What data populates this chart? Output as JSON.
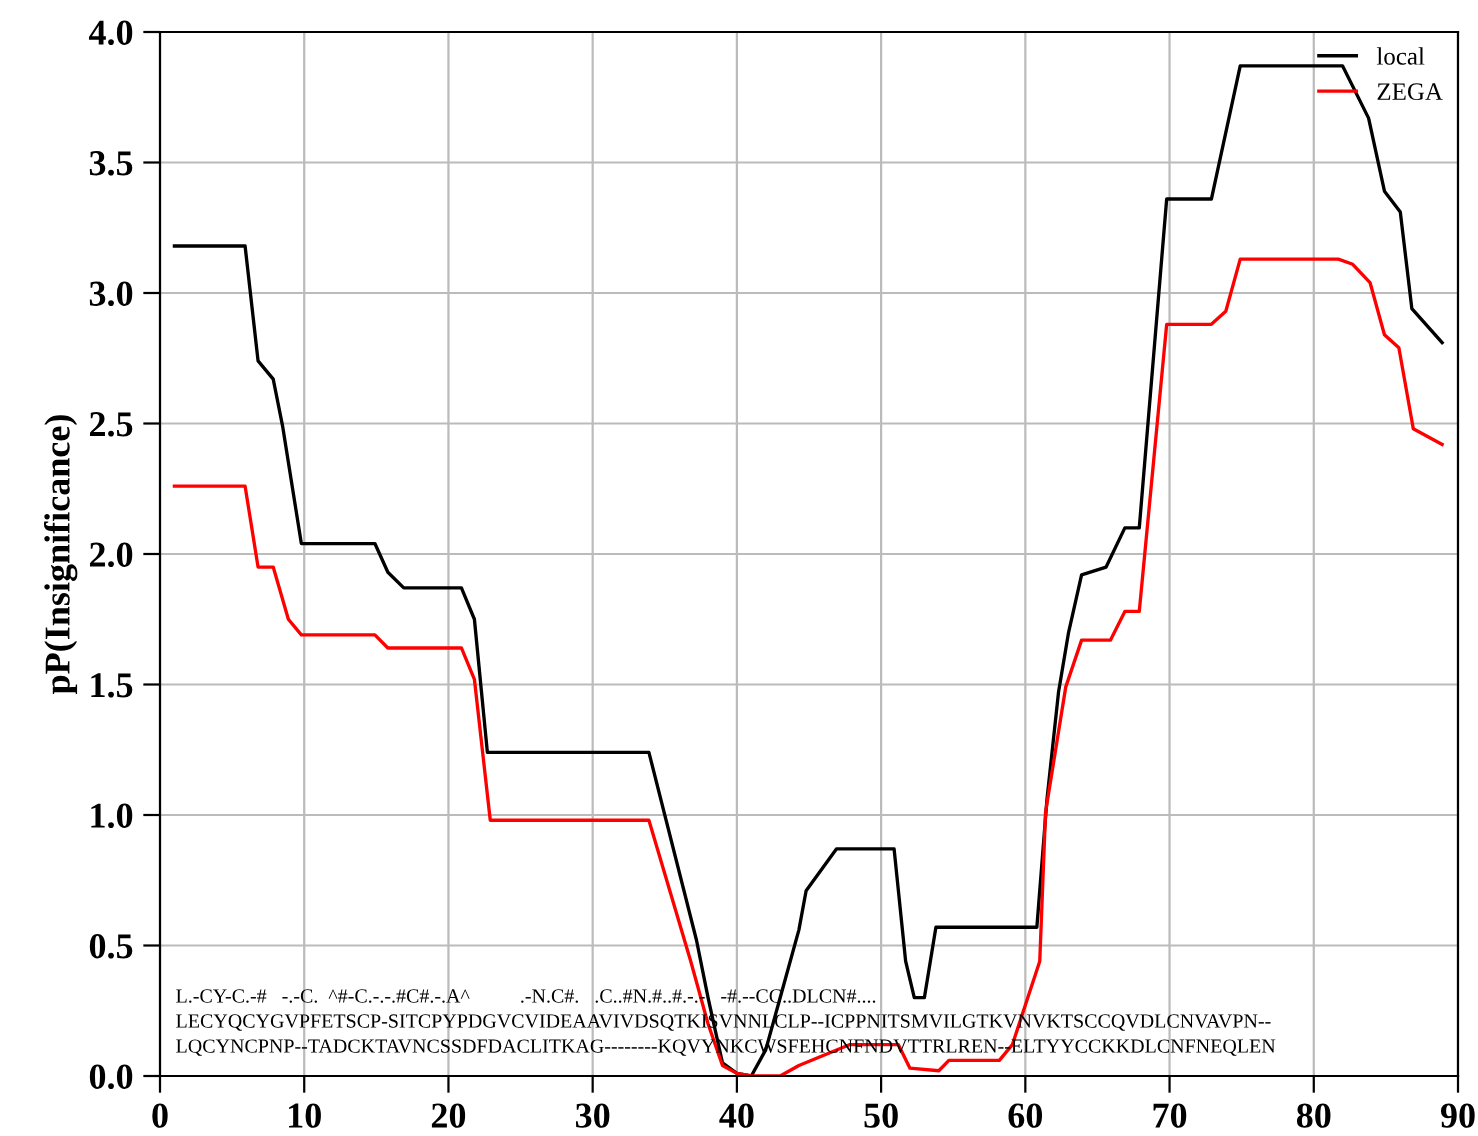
{
  "chart_data": {
    "type": "line",
    "ylabel": "pP(Insignificance)",
    "xlim": [
      0,
      90
    ],
    "xticks": [
      0,
      10,
      20,
      30,
      40,
      50,
      60,
      70,
      80,
      90
    ],
    "ylim": [
      0,
      4
    ],
    "yticks": [
      {
        "value": 0,
        "label": "0.0"
      },
      0.5,
      {
        "value": 1,
        "label": "1.0"
      },
      1.5,
      {
        "value": 2,
        "label": "2.0"
      },
      2.5,
      {
        "value": 3,
        "label": "3.0"
      },
      3.5,
      {
        "value": 4,
        "label": "4.0"
      }
    ],
    "grid": true,
    "legend": "top right",
    "marker": "none",
    "line_style": "solid",
    "series": [
      {
        "name": "local",
        "color": "#000000",
        "x": [
          1,
          5.9,
          6.8,
          7.85,
          8.5,
          9.8,
          14.9,
          15.8,
          16.9,
          20.9,
          21.8,
          22.7,
          33.9,
          37.2,
          38,
          39,
          40,
          41,
          42,
          43,
          44.3,
          44.8,
          46.9,
          50.9,
          51.7,
          52.3,
          53,
          53.8,
          60.8,
          61.5,
          62.3,
          63,
          63.9,
          65.6,
          66.9,
          67.9,
          69.8,
          72.9,
          74.9,
          82,
          83.8,
          84.9,
          86,
          86.8,
          88.9
        ],
        "values": [
          3.18,
          3.18,
          2.74,
          2.67,
          2.49,
          2.04,
          2.04,
          1.93,
          1.87,
          1.87,
          1.75,
          1.24,
          1.24,
          0.52,
          0.3,
          0.05,
          0.01,
          0.0,
          0.1,
          0.3,
          0.56,
          0.71,
          0.87,
          0.87,
          0.44,
          0.3,
          0.3,
          0.57,
          0.57,
          1.06,
          1.47,
          1.7,
          1.92,
          1.95,
          2.1,
          2.1,
          3.36,
          3.36,
          3.87,
          3.87,
          3.67,
          3.39,
          3.31,
          2.94,
          2.81
        ]
      },
      {
        "name": "ZEGA",
        "color": "#ff0000",
        "x": [
          1,
          5.9,
          6.8,
          7.85,
          8.9,
          9.8,
          14.9,
          15.8,
          20.9,
          21.8,
          22.9,
          33.9,
          36.8,
          38,
          39,
          40,
          41,
          42,
          43,
          44.3,
          47.8,
          51.2,
          52,
          54,
          54.7,
          58.2,
          59.1,
          61,
          61.4,
          62.8,
          63.9,
          65.9,
          66.9,
          67.9,
          69.8,
          72.9,
          73.9,
          74.9,
          81.7,
          82.7,
          83.9,
          84.9,
          85.9,
          86.9,
          88.9
        ],
        "values": [
          2.26,
          2.26,
          1.95,
          1.95,
          1.75,
          1.69,
          1.69,
          1.64,
          1.64,
          1.52,
          0.98,
          0.98,
          0.44,
          0.2,
          0.04,
          0.01,
          0.0,
          0.0,
          0.0,
          0.04,
          0.12,
          0.12,
          0.03,
          0.02,
          0.06,
          0.06,
          0.12,
          0.44,
          1.01,
          1.49,
          1.67,
          1.67,
          1.78,
          1.78,
          2.88,
          2.88,
          2.93,
          3.13,
          3.13,
          3.11,
          3.04,
          2.84,
          2.79,
          2.48,
          2.42
        ]
      }
    ],
    "annotations": [
      "L.-CY-C.-#   -.-C.  ^#-C.-.-.#C#.-.A^          .-N.C#.   .C..#N.#..#.-.-   -#.--CC..DLCN#....",
      "LECYQCYGVPFETSCP-SITCPYPDGVCVIDEAAVIVDSQTKISVNNLCLP--ICPPNITSMVILGTKVNVKTSCCQVDLCNVAVPN--",
      "LQCYNCPNP--TADCKTAVNCSSDFDACLITKAG--------KQVYNKCWSFEHCNFNDVTTRLREN--ELTYYCCKKDLCNFNEQLEN"
    ]
  }
}
